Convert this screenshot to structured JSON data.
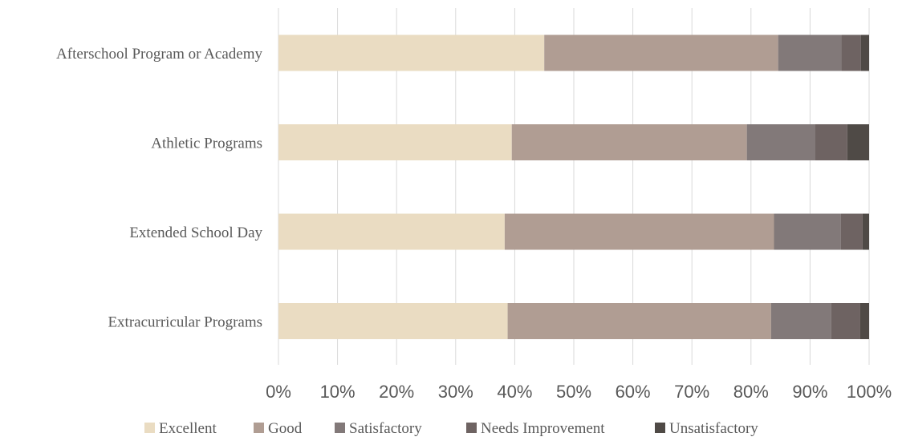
{
  "chart_data": {
    "type": "bar",
    "orientation": "horizontal",
    "stacked": "percent",
    "title": "",
    "xlabel": "",
    "ylabel": "",
    "xlim": [
      0,
      100
    ],
    "x_ticks": [
      "0%",
      "10%",
      "20%",
      "30%",
      "40%",
      "50%",
      "60%",
      "70%",
      "80%",
      "90%",
      "100%"
    ],
    "grid": true,
    "legend_position": "bottom",
    "categories": [
      "Afterschool Program or Academy",
      "Athletic Programs",
      "Extended School Day",
      "Extracurricular Programs"
    ],
    "series": [
      {
        "name": "Excellent",
        "color": "#eadcc2",
        "values": [
          45,
          39.5,
          38.3,
          38.8
        ]
      },
      {
        "name": "Good",
        "color": "#b09d93",
        "values": [
          39.6,
          39.8,
          45.6,
          44.6
        ]
      },
      {
        "name": "Satisfactory",
        "color": "#827979",
        "values": [
          10.7,
          11.5,
          11.3,
          10.2
        ]
      },
      {
        "name": "Needs Improvement",
        "color": "#6e6362",
        "values": [
          3.3,
          5.5,
          3.7,
          4.9
        ]
      },
      {
        "name": "Unsatisfactory",
        "color": "#4f4a46",
        "values": [
          1.4,
          3.7,
          1.1,
          1.5
        ]
      }
    ]
  }
}
